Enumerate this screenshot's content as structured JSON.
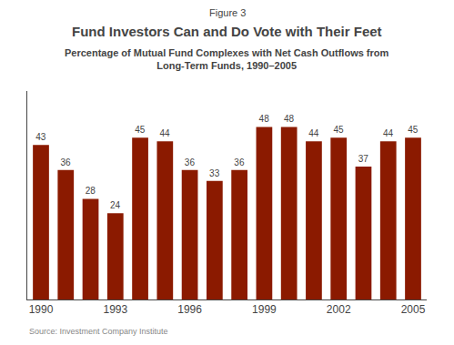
{
  "chart_data": {
    "type": "bar",
    "title": "Fund Investors Can and Do Vote with Their Feet",
    "subtitle": [
      "Percentage of Mutual Fund Complexes with Net Cash Outflows from",
      "Long-Term Funds, 1990–2005"
    ],
    "annotations": [
      "Figure 3",
      "Source: Investment Company Institute"
    ],
    "categories": [
      "1990",
      null,
      null,
      "1993",
      null,
      null,
      "1996",
      null,
      null,
      "1999",
      null,
      null,
      "2002",
      null,
      null,
      "2005"
    ],
    "values": [
      43,
      36,
      28,
      24,
      45,
      44,
      36,
      33,
      36,
      48,
      48,
      44,
      45,
      37,
      44,
      45
    ],
    "color": "#8B1A00",
    "ylim": [
      0,
      58
    ],
    "yticks": [],
    "data_labels": true,
    "tick_labels": "x",
    "grid": false
  }
}
